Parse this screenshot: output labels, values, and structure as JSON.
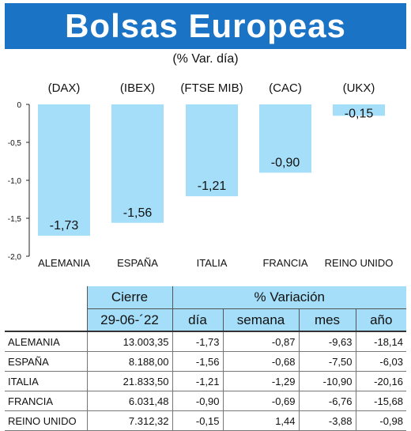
{
  "title": "Bolsas Europeas",
  "subtitle": "(% Var. día)",
  "colors": {
    "title_bg": "#1a73c5",
    "bar": "#a5def8",
    "table_header": "#a5def8"
  },
  "chart_data": {
    "type": "bar",
    "indices": [
      "(DAX)",
      "(IBEX)",
      "(FTSE MIB)",
      "(CAC)",
      "(UKX)"
    ],
    "categories": [
      "ALEMANIA",
      "ESPAÑA",
      "ITALIA",
      "FRANCIA",
      "REINO UNIDO"
    ],
    "values": [
      -1.73,
      -1.56,
      -1.21,
      -0.9,
      -0.15
    ],
    "value_labels": [
      "-1,73",
      "-1,56",
      "-1,21",
      "-0,90",
      "-0,15"
    ],
    "ylim": [
      -2.0,
      0
    ],
    "yticks": [
      0,
      -0.5,
      -1.0,
      -1.5,
      -2.0
    ],
    "ytick_labels": [
      "0",
      "-0,5",
      "-1,0",
      "-1,5",
      "-2,0"
    ],
    "grid": false
  },
  "table": {
    "header_cierre": "Cierre",
    "header_variacion": "% Variación",
    "date": "29-06-´22",
    "columns": [
      "día",
      "semana",
      "mes",
      "año"
    ],
    "rows": [
      {
        "name": "ALEMANIA",
        "cierre": "13.003,35",
        "dia": "-1,73",
        "semana": "-0,87",
        "mes": "-9,63",
        "ano": "-18,14"
      },
      {
        "name": "ESPAÑA",
        "cierre": "8.188,00",
        "dia": "-1,56",
        "semana": "-0,68",
        "mes": "-7,50",
        "ano": "-6,03"
      },
      {
        "name": "ITALIA",
        "cierre": "21.833,50",
        "dia": "-1,21",
        "semana": "-1,29",
        "mes": "-10,90",
        "ano": "-20,16"
      },
      {
        "name": "FRANCIA",
        "cierre": "6.031,48",
        "dia": "-0,90",
        "semana": "-0,69",
        "mes": "-6,76",
        "ano": "-15,68"
      },
      {
        "name": "REINO UNIDO",
        "cierre": "7.312,32",
        "dia": "-0,15",
        "semana": "1,44",
        "mes": "-3,88",
        "ano": "-0,98"
      }
    ]
  }
}
